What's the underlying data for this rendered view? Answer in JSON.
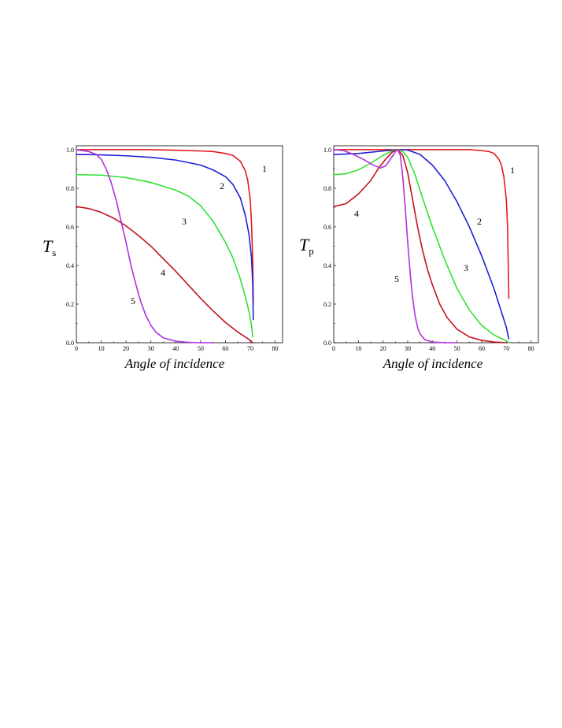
{
  "colors": {
    "curve1": "#e41a1c",
    "curve2": "#1f1fd6",
    "curve3": "#33e033",
    "curve4": "#c0141e",
    "curve5": "#b030e0"
  },
  "chart_data": [
    {
      "type": "line",
      "id": "Ts",
      "xlabel": "Angle of incidence",
      "ylabel": "T",
      "ylabel_sub": "s",
      "xlim": [
        0,
        83
      ],
      "ylim": [
        0,
        1.02
      ],
      "xticks": [
        0,
        10,
        20,
        30,
        40,
        50,
        60,
        70,
        80
      ],
      "yticks": [
        0.0,
        0.2,
        0.4,
        0.6,
        0.8,
        1.0
      ],
      "xtick_labels": [
        "0",
        "10",
        "20",
        "30",
        "40",
        "50",
        "60",
        "70",
        "80"
      ],
      "ytick_labels": [
        "0.0",
        "0.2",
        "0.4",
        "0.6",
        "0.8",
        "1.0"
      ],
      "series": [
        {
          "label": "1",
          "color_key": "curve1",
          "x": [
            0,
            10,
            20,
            30,
            40,
            50,
            55,
            60,
            63,
            66,
            68,
            69,
            70,
            70.5,
            71,
            71.2
          ],
          "y": [
            1.0,
            1.0,
            1.0,
            1.0,
            0.997,
            0.993,
            0.99,
            0.98,
            0.97,
            0.94,
            0.89,
            0.84,
            0.74,
            0.62,
            0.42,
            0.21
          ]
        },
        {
          "label": "2",
          "color_key": "curve2",
          "x": [
            0,
            10,
            20,
            30,
            40,
            50,
            55,
            60,
            63,
            66,
            68,
            69.5,
            70.5,
            71,
            71.2
          ],
          "y": [
            0.975,
            0.973,
            0.968,
            0.96,
            0.946,
            0.92,
            0.895,
            0.86,
            0.82,
            0.75,
            0.66,
            0.56,
            0.44,
            0.3,
            0.12
          ]
        },
        {
          "label": "3",
          "color_key": "curve3",
          "x": [
            0,
            10,
            20,
            30,
            40,
            45,
            50,
            55,
            60,
            63,
            66,
            68,
            69.5,
            70.5,
            71
          ],
          "y": [
            0.87,
            0.868,
            0.855,
            0.83,
            0.79,
            0.76,
            0.71,
            0.63,
            0.52,
            0.44,
            0.33,
            0.24,
            0.16,
            0.09,
            0.03
          ]
        },
        {
          "label": "4",
          "color_key": "curve4",
          "x": [
            0,
            5,
            10,
            15,
            20,
            25,
            30,
            35,
            40,
            45,
            50,
            55,
            60,
            65,
            68,
            70,
            71
          ],
          "y": [
            0.705,
            0.695,
            0.675,
            0.645,
            0.605,
            0.555,
            0.5,
            0.435,
            0.37,
            0.3,
            0.23,
            0.165,
            0.105,
            0.055,
            0.03,
            0.012,
            0.0
          ]
        },
        {
          "label": "5",
          "color_key": "curve5",
          "x": [
            0,
            5,
            8,
            10,
            12,
            14,
            16,
            18,
            20,
            22,
            24,
            26,
            28,
            30,
            32,
            35,
            40,
            45,
            50,
            55
          ],
          "y": [
            1.0,
            0.99,
            0.975,
            0.95,
            0.9,
            0.83,
            0.74,
            0.63,
            0.52,
            0.4,
            0.3,
            0.21,
            0.14,
            0.09,
            0.055,
            0.025,
            0.008,
            0.002,
            0.0,
            0.0
          ]
        }
      ]
    },
    {
      "type": "line",
      "id": "Tp",
      "xlabel": "Angle of incidence",
      "ylabel": "T",
      "ylabel_sub": "p",
      "xlim": [
        0,
        83
      ],
      "ylim": [
        0,
        1.02
      ],
      "xticks": [
        0,
        10,
        20,
        30,
        40,
        50,
        60,
        70,
        80
      ],
      "yticks": [
        0.0,
        0.2,
        0.4,
        0.6,
        0.8,
        1.0
      ],
      "xtick_labels": [
        "0",
        "10",
        "20",
        "30",
        "40",
        "50",
        "60",
        "70",
        "80"
      ],
      "ytick_labels": [
        "0.0",
        "0.2",
        "0.4",
        "0.6",
        "0.8",
        "1.0"
      ],
      "series": [
        {
          "label": "1",
          "color_key": "curve1",
          "x": [
            0,
            10,
            20,
            26,
            30,
            40,
            50,
            55,
            60,
            63,
            65,
            67,
            68,
            69,
            70,
            70.5,
            71
          ],
          "y": [
            1.0,
            1.0,
            1.0,
            1.0,
            1.0,
            1.0,
            1.0,
            1.0,
            0.995,
            0.99,
            0.98,
            0.95,
            0.92,
            0.86,
            0.74,
            0.6,
            0.23
          ]
        },
        {
          "label": "2",
          "color_key": "curve2",
          "x": [
            0,
            10,
            20,
            26,
            30,
            35,
            40,
            45,
            50,
            55,
            60,
            65,
            68,
            70,
            71
          ],
          "y": [
            0.975,
            0.98,
            0.993,
            1.0,
            0.998,
            0.975,
            0.92,
            0.84,
            0.73,
            0.6,
            0.45,
            0.28,
            0.16,
            0.08,
            0.02
          ]
        },
        {
          "label": "3",
          "color_key": "curve3",
          "x": [
            0,
            5,
            10,
            15,
            20,
            24,
            26,
            28,
            30,
            33,
            36,
            40,
            45,
            50,
            55,
            60,
            65,
            70,
            71
          ],
          "y": [
            0.87,
            0.875,
            0.895,
            0.93,
            0.97,
            0.995,
            1.0,
            0.99,
            0.96,
            0.87,
            0.75,
            0.6,
            0.43,
            0.28,
            0.17,
            0.09,
            0.04,
            0.01,
            0.0
          ]
        },
        {
          "label": "4",
          "color_key": "curve4",
          "x": [
            0,
            5,
            10,
            15,
            18,
            21,
            24,
            26,
            28,
            30,
            32,
            34,
            36,
            38,
            40,
            43,
            46,
            50,
            55,
            60,
            65,
            70
          ],
          "y": [
            0.705,
            0.72,
            0.77,
            0.84,
            0.9,
            0.95,
            0.99,
            1.0,
            0.97,
            0.88,
            0.74,
            0.6,
            0.48,
            0.38,
            0.3,
            0.2,
            0.13,
            0.07,
            0.03,
            0.012,
            0.004,
            0.0
          ]
        },
        {
          "label": "5",
          "color_key": "curve5",
          "x": [
            0,
            4,
            8,
            12,
            16,
            19,
            21,
            23,
            25,
            26,
            27,
            28,
            29,
            30,
            31,
            32,
            33,
            34,
            35,
            37,
            40,
            45,
            50
          ],
          "y": [
            1.0,
            0.995,
            0.975,
            0.95,
            0.92,
            0.905,
            0.915,
            0.95,
            0.99,
            1.0,
            0.97,
            0.86,
            0.7,
            0.52,
            0.36,
            0.23,
            0.14,
            0.08,
            0.045,
            0.015,
            0.004,
            0.0,
            0.0
          ]
        }
      ]
    }
  ]
}
